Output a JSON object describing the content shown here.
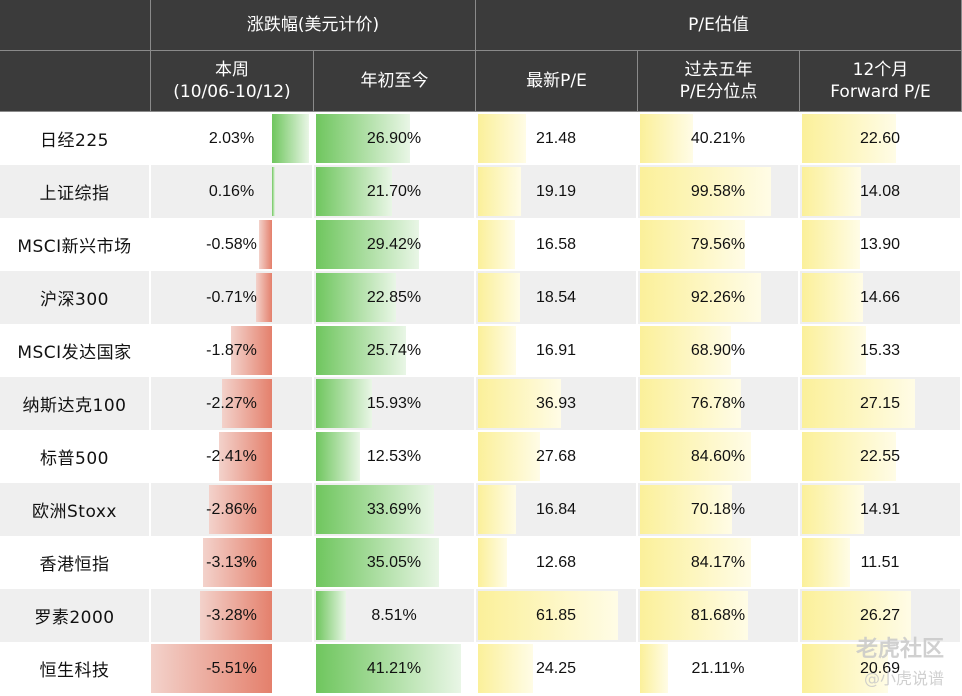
{
  "header": {
    "group_change": "涨跌幅(美元计价)",
    "group_pe": "P/E估值",
    "col_week_1": "本周",
    "col_week_2": "(10/06-10/12)",
    "col_ytd": "年初至今",
    "col_latest_pe": "最新P/E",
    "col_pct_1": "过去五年",
    "col_pct_2": "P/E分位点",
    "col_fwd_1": "12个月",
    "col_fwd_2": "Forward P/E"
  },
  "rows": [
    {
      "name": "日经225",
      "week": "2.03%",
      "ytd": "26.90%",
      "pe": "21.48",
      "pct": "40.21%",
      "fwd": "22.60",
      "week_v": 2.03,
      "ytd_v": 26.9,
      "pe_v": 21.48,
      "pct_v": 40.21,
      "fwd_v": 22.6
    },
    {
      "name": "上证综指",
      "week": "0.16%",
      "ytd": "21.70%",
      "pe": "19.19",
      "pct": "99.58%",
      "fwd": "14.08",
      "week_v": 0.16,
      "ytd_v": 21.7,
      "pe_v": 19.19,
      "pct_v": 99.58,
      "fwd_v": 14.08
    },
    {
      "name": "MSCI新兴市场",
      "week": "-0.58%",
      "ytd": "29.42%",
      "pe": "16.58",
      "pct": "79.56%",
      "fwd": "13.90",
      "week_v": -0.58,
      "ytd_v": 29.42,
      "pe_v": 16.58,
      "pct_v": 79.56,
      "fwd_v": 13.9
    },
    {
      "name": "沪深300",
      "week": "-0.71%",
      "ytd": "22.85%",
      "pe": "18.54",
      "pct": "92.26%",
      "fwd": "14.66",
      "week_v": -0.71,
      "ytd_v": 22.85,
      "pe_v": 18.54,
      "pct_v": 92.26,
      "fwd_v": 14.66
    },
    {
      "name": "MSCI发达国家",
      "week": "-1.87%",
      "ytd": "25.74%",
      "pe": "16.91",
      "pct": "68.90%",
      "fwd": "15.33",
      "week_v": -1.87,
      "ytd_v": 25.74,
      "pe_v": 16.91,
      "pct_v": 68.9,
      "fwd_v": 15.33
    },
    {
      "name": "纳斯达克100",
      "week": "-2.27%",
      "ytd": "15.93%",
      "pe": "36.93",
      "pct": "76.78%",
      "fwd": "27.15",
      "week_v": -2.27,
      "ytd_v": 15.93,
      "pe_v": 36.93,
      "pct_v": 76.78,
      "fwd_v": 27.15
    },
    {
      "name": "标普500",
      "week": "-2.41%",
      "ytd": "12.53%",
      "pe": "27.68",
      "pct": "84.60%",
      "fwd": "22.55",
      "week_v": -2.41,
      "ytd_v": 12.53,
      "pe_v": 27.68,
      "pct_v": 84.6,
      "fwd_v": 22.55
    },
    {
      "name": "欧洲Stoxx",
      "week": "-2.86%",
      "ytd": "33.69%",
      "pe": "16.84",
      "pct": "70.18%",
      "fwd": "14.91",
      "week_v": -2.86,
      "ytd_v": 33.69,
      "pe_v": 16.84,
      "pct_v": 70.18,
      "fwd_v": 14.91
    },
    {
      "name": "香港恒指",
      "week": "-3.13%",
      "ytd": "35.05%",
      "pe": "12.68",
      "pct": "84.17%",
      "fwd": "11.51",
      "week_v": -3.13,
      "ytd_v": 35.05,
      "pe_v": 12.68,
      "pct_v": 84.17,
      "fwd_v": 11.51
    },
    {
      "name": "罗素2000",
      "week": "-3.28%",
      "ytd": "8.51%",
      "pe": "61.85",
      "pct": "81.68%",
      "fwd": "26.27",
      "week_v": -3.28,
      "ytd_v": 8.51,
      "pe_v": 61.85,
      "pct_v": 81.68,
      "fwd_v": 26.27
    },
    {
      "name": "恒生科技",
      "week": "-5.51%",
      "ytd": "41.21%",
      "pe": "24.25",
      "pct": "21.11%",
      "fwd": "20.69",
      "week_v": -5.51,
      "ytd_v": 41.21,
      "pe_v": 24.25,
      "pct_v": 21.11,
      "fwd_v": 20.69
    }
  ],
  "watermark": {
    "brand": "老虎社区",
    "author": "@小虎说谱"
  },
  "colors": {
    "header_bg": "#3b3b3b",
    "pos_bar": "#6fc65e",
    "neg_bar": "#e4806c",
    "pe_bar": "#fbf09a",
    "alt_row": "#efefef"
  }
}
